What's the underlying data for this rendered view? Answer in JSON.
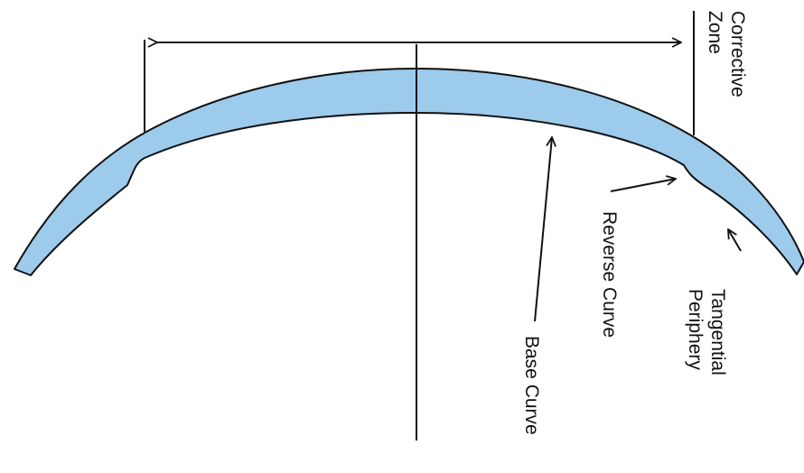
{
  "labels": {
    "corrective_zone_line1": "Corrective",
    "corrective_zone_line2": "Zone",
    "reverse_curve": "Reverse Curve",
    "tangential_periphery_line1": "Tangential",
    "tangential_periphery_line2": "Periphery",
    "base_curve": "Base Curve"
  },
  "colors": {
    "lens_fill": "#9ccbec",
    "stroke": "#111111",
    "background": "#ffffff"
  }
}
